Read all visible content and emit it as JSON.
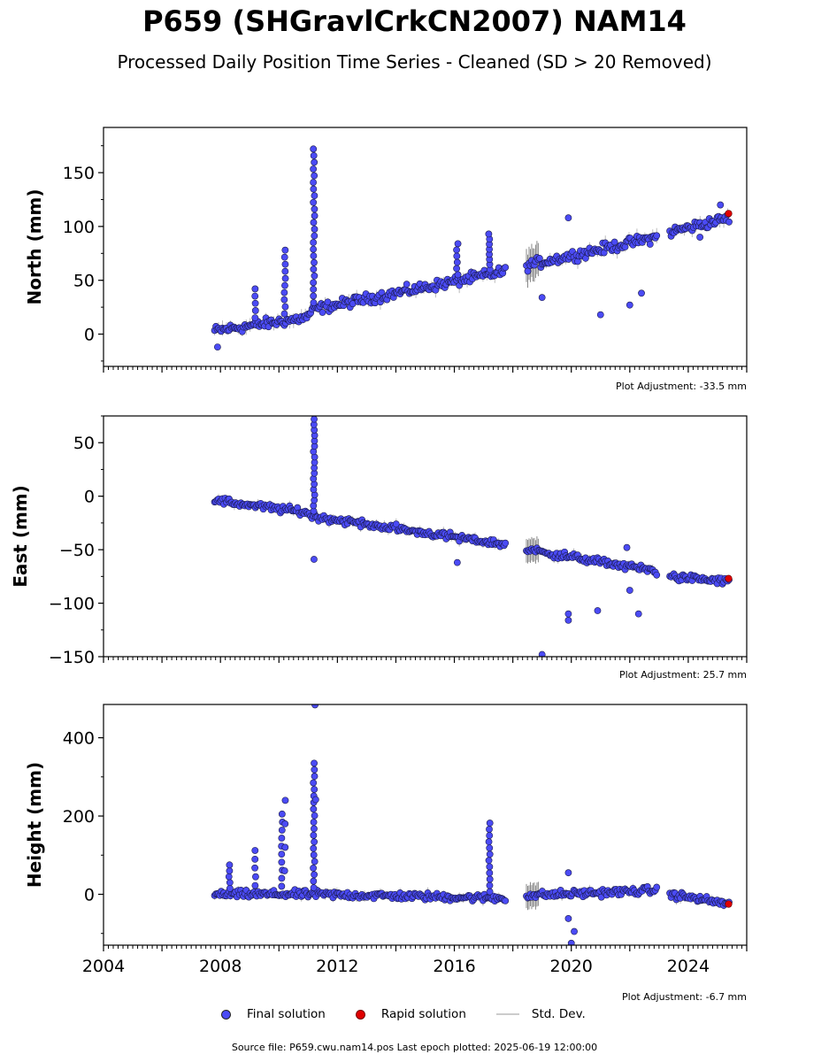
{
  "title": "P659 (SHGravlCrkCN2007) NAM14",
  "subtitle": "Processed Daily Position Time Series - Cleaned (SD > 20 Removed)",
  "legend": {
    "final": "Final solution",
    "rapid": "Rapid solution",
    "std": "Std. Dev."
  },
  "source_text": "Source file: P659.cwu.nam14.pos  Last epoch plotted: 2025-06-19 12:00:00",
  "colors": {
    "final": "#4b4bf5",
    "final_edge": "#1a1a4a",
    "rapid": "#e00000",
    "std": "#bbbbbb"
  },
  "chart_data": [
    {
      "type": "scatter",
      "ylabel": "North (mm)",
      "adjustment": "Plot Adjustment: -33.5 mm",
      "xlim": [
        2004,
        2026
      ],
      "ylim": [
        -30,
        192
      ],
      "yticks": [
        0,
        50,
        100,
        150
      ],
      "ytick_labels": [
        "0",
        "50",
        "100",
        "150"
      ],
      "trend": [
        [
          2007.8,
          3
        ],
        [
          2010.9,
          15
        ],
        [
          2011.2,
          23
        ],
        [
          2017.7,
          58
        ],
        [
          2018.5,
          64
        ],
        [
          2022.9,
          90
        ],
        [
          2023.4,
          95
        ],
        [
          2025.4,
          108
        ]
      ],
      "jitter": 7,
      "spikes": [
        {
          "x": 2010.2,
          "top": 78,
          "n": 10
        },
        {
          "x": 2011.2,
          "top": 172,
          "n": 24
        },
        {
          "x": 2016.1,
          "top": 84,
          "n": 6
        },
        {
          "x": 2017.2,
          "top": 93,
          "n": 8
        },
        {
          "x": 2009.2,
          "top": 42,
          "n": 5
        }
      ],
      "outliers": [
        [
          2007.9,
          -12
        ],
        [
          2019.0,
          34
        ],
        [
          2019.9,
          108
        ],
        [
          2021.0,
          18
        ],
        [
          2022.0,
          27
        ],
        [
          2022.4,
          38
        ],
        [
          2025.1,
          120
        ],
        [
          2024.4,
          90
        ]
      ],
      "rapid": [
        [
          2025.38,
          112
        ]
      ]
    },
    {
      "type": "scatter",
      "ylabel": "East (mm)",
      "adjustment": "Plot Adjustment: 25.7 mm",
      "xlim": [
        2004,
        2026
      ],
      "ylim": [
        -150,
        75
      ],
      "yticks": [
        -150,
        -100,
        -50,
        0,
        50
      ],
      "ytick_labels": [
        "−150",
        "−100",
        "−50",
        "0",
        "50"
      ],
      "trend": [
        [
          2007.8,
          -4
        ],
        [
          2010.9,
          -15
        ],
        [
          2011.2,
          -19
        ],
        [
          2017.7,
          -45
        ],
        [
          2018.5,
          -50
        ],
        [
          2022.9,
          -70
        ],
        [
          2023.4,
          -75
        ],
        [
          2025.4,
          -80
        ]
      ],
      "jitter": 5,
      "spikes": [
        {
          "x": 2011.2,
          "top": 72,
          "n": 18
        }
      ],
      "outliers": [
        [
          2011.2,
          -59
        ],
        [
          2016.1,
          -62
        ],
        [
          2019.0,
          -148
        ],
        [
          2019.9,
          -110
        ],
        [
          2019.9,
          -116
        ],
        [
          2020.9,
          -107
        ],
        [
          2022.3,
          -110
        ],
        [
          2022.0,
          -88
        ],
        [
          2021.9,
          -48
        ]
      ],
      "rapid": [
        [
          2025.38,
          -77
        ]
      ]
    },
    {
      "type": "scatter",
      "ylabel": "Height (mm)",
      "adjustment": "Plot Adjustment: -6.7 mm",
      "xlim": [
        2004,
        2026
      ],
      "ylim": [
        -130,
        485
      ],
      "yticks": [
        0,
        200,
        400
      ],
      "ytick_labels": [
        "0",
        "200",
        "400"
      ],
      "xticks": [
        2004,
        2008,
        2012,
        2016,
        2020,
        2024
      ],
      "xtick_labels": [
        "2004",
        "2008",
        "2012",
        "2016",
        "2020",
        "2024"
      ],
      "trend": [
        [
          2007.8,
          0
        ],
        [
          2010.9,
          0
        ],
        [
          2011.2,
          0
        ],
        [
          2017.7,
          -10
        ],
        [
          2018.5,
          -3
        ],
        [
          2022.9,
          10
        ],
        [
          2023.4,
          0
        ],
        [
          2025.4,
          -25
        ]
      ],
      "jitter": 14,
      "spikes": [
        {
          "x": 2008.3,
          "top": 75,
          "n": 5
        },
        {
          "x": 2009.2,
          "top": 112,
          "n": 5
        },
        {
          "x": 2010.1,
          "top": 205,
          "n": 10
        },
        {
          "x": 2010.2,
          "top": 240,
          "n": 4
        },
        {
          "x": 2011.2,
          "top": 335,
          "n": 20
        },
        {
          "x": 2011.25,
          "top": 484,
          "n": 2
        },
        {
          "x": 2017.2,
          "top": 182,
          "n": 12
        }
      ],
      "outliers": [
        [
          2019.9,
          -62
        ],
        [
          2020.1,
          -95
        ],
        [
          2020.0,
          -125
        ],
        [
          2019.9,
          55
        ]
      ],
      "rapid": [
        [
          2025.38,
          -25
        ]
      ]
    }
  ]
}
